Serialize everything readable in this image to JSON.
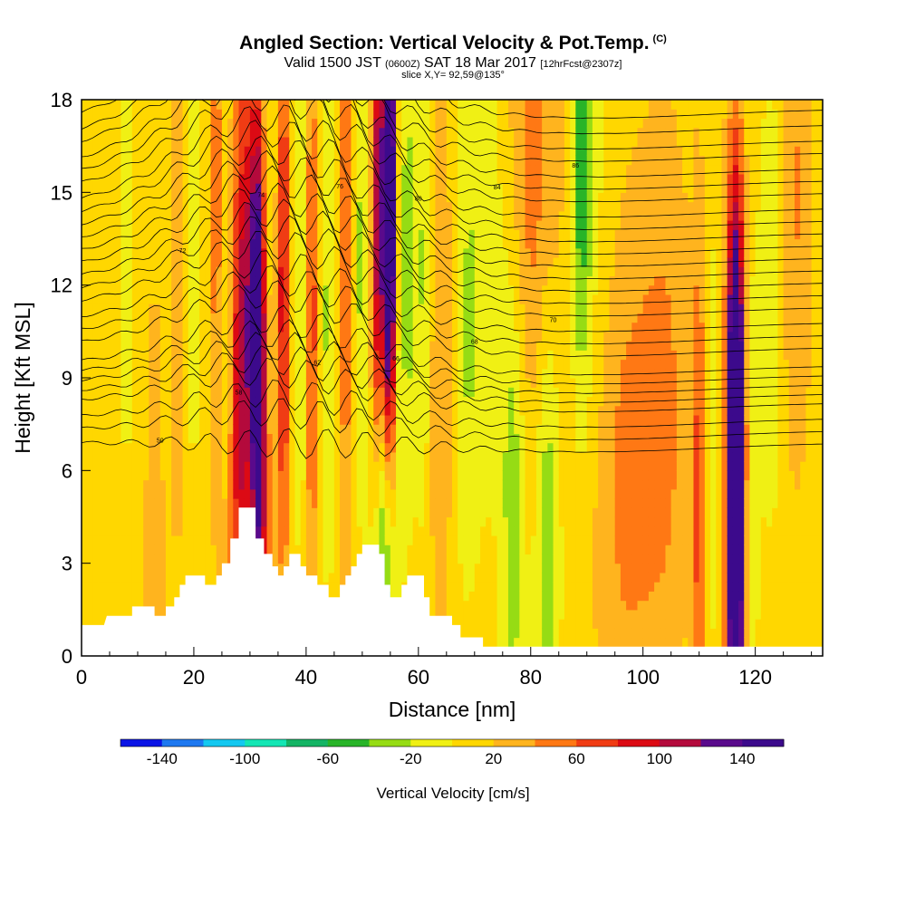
{
  "title": {
    "main": "Angled Section: Vertical Velocity & Pot.Temp.",
    "main_suffix": "(C)",
    "valid_prefix": "Valid 1500 JST",
    "valid_utc": "(0600Z)",
    "valid_date": "SAT 18 Mar 2017",
    "valid_fcst": "[12hrFcst@2307z]",
    "slice": "slice X,Y= 92,59@135°"
  },
  "chart_data": {
    "type": "heatmap",
    "xlabel": "Distance [nm]",
    "ylabel": "Height [Kft MSL]",
    "xlim": [
      0,
      132
    ],
    "ylim": [
      0,
      18
    ],
    "x_ticks": [
      0,
      20,
      40,
      60,
      80,
      100,
      120
    ],
    "y_ticks": [
      0,
      3,
      6,
      9,
      12,
      15,
      18
    ],
    "colorbar": {
      "label": "Vertical Velocity [cm/s]",
      "tick_labels": [
        -140,
        -100,
        -60,
        -20,
        20,
        60,
        100,
        140
      ],
      "levels": [
        -160,
        -140,
        -120,
        -100,
        -80,
        -60,
        -40,
        -20,
        0,
        20,
        40,
        60,
        80,
        100,
        120,
        140,
        160
      ],
      "colors": [
        "#0a14e6",
        "#1e78f0",
        "#14c8f0",
        "#14e6b4",
        "#14b464",
        "#28b428",
        "#96dc14",
        "#f0f014",
        "#ffd700",
        "#ffb41e",
        "#ff7814",
        "#f03c14",
        "#dc0a14",
        "#b40a3c",
        "#5a0a8c",
        "#3c0a8c"
      ]
    },
    "terrain_kft": [
      [
        0,
        1.0
      ],
      [
        4,
        1.0
      ],
      [
        4.5,
        1.3
      ],
      [
        9,
        1.3
      ],
      [
        9,
        1.6
      ],
      [
        13,
        1.6
      ],
      [
        13,
        1.3
      ],
      [
        15,
        1.3
      ],
      [
        15,
        1.6
      ],
      [
        16.5,
        1.6
      ],
      [
        16.5,
        1.9
      ],
      [
        17.5,
        1.9
      ],
      [
        17.5,
        2.3
      ],
      [
        18.5,
        2.3
      ],
      [
        18.5,
        2.6
      ],
      [
        22,
        2.6
      ],
      [
        22,
        2.3
      ],
      [
        24,
        2.3
      ],
      [
        24,
        2.6
      ],
      [
        25,
        2.6
      ],
      [
        25,
        3.0
      ],
      [
        26.5,
        3.0
      ],
      [
        26.5,
        3.8
      ],
      [
        28,
        3.8
      ],
      [
        28,
        4.8
      ],
      [
        31,
        4.8
      ],
      [
        31,
        3.8
      ],
      [
        32.5,
        3.8
      ],
      [
        32.5,
        3.3
      ],
      [
        34,
        3.3
      ],
      [
        34,
        2.9
      ],
      [
        35,
        2.9
      ],
      [
        35,
        2.6
      ],
      [
        36,
        2.6
      ],
      [
        36,
        2.9
      ],
      [
        37,
        2.9
      ],
      [
        37,
        3.3
      ],
      [
        39,
        3.3
      ],
      [
        39,
        2.9
      ],
      [
        40,
        2.9
      ],
      [
        40,
        2.6
      ],
      [
        42,
        2.6
      ],
      [
        42,
        2.3
      ],
      [
        44,
        2.3
      ],
      [
        44,
        1.9
      ],
      [
        46,
        1.9
      ],
      [
        46,
        2.3
      ],
      [
        47,
        2.3
      ],
      [
        47,
        2.6
      ],
      [
        48,
        2.6
      ],
      [
        48,
        2.9
      ],
      [
        49,
        2.9
      ],
      [
        49,
        3.3
      ],
      [
        50,
        3.3
      ],
      [
        50,
        3.6
      ],
      [
        53,
        3.6
      ],
      [
        53,
        3.3
      ],
      [
        54,
        3.3
      ],
      [
        54,
        2.3
      ],
      [
        55,
        2.3
      ],
      [
        55,
        1.9
      ],
      [
        57,
        1.9
      ],
      [
        57,
        2.3
      ],
      [
        58,
        2.3
      ],
      [
        58,
        2.6
      ],
      [
        61,
        2.6
      ],
      [
        61,
        1.9
      ],
      [
        62,
        1.9
      ],
      [
        62,
        1.3
      ],
      [
        66,
        1.3
      ],
      [
        66,
        1.0
      ],
      [
        67.5,
        1.0
      ],
      [
        67.5,
        0.6
      ],
      [
        71.5,
        0.6
      ],
      [
        71.5,
        0.3
      ],
      [
        132,
        0.3
      ]
    ],
    "theta_isolines_kft": [
      [
        0.0,
        6.9
      ],
      [
        0.6,
        7.3
      ],
      [
        0.8,
        7.7
      ],
      [
        1.0,
        8.2
      ],
      [
        1.1,
        8.5
      ],
      [
        1.25,
        8.8
      ],
      [
        1.35,
        9.1
      ],
      [
        1.5,
        9.4
      ],
      [
        1.7,
        10.0
      ],
      [
        1.8,
        10.4
      ],
      [
        1.9,
        10.8
      ],
      [
        2.05,
        11.3
      ],
      [
        2.15,
        11.7
      ],
      [
        2.25,
        12.1
      ],
      [
        2.35,
        12.5
      ],
      [
        2.5,
        12.9
      ],
      [
        2.6,
        13.3
      ],
      [
        2.7,
        13.7
      ],
      [
        2.85,
        14.1
      ],
      [
        2.95,
        14.5
      ],
      [
        3.1,
        15.0
      ],
      [
        3.25,
        15.4
      ],
      [
        3.35,
        15.8
      ],
      [
        3.5,
        16.3
      ],
      [
        3.6,
        16.7
      ],
      [
        3.75,
        17.2
      ],
      [
        3.9,
        17.7
      ]
    ],
    "contour_labels": [
      "50",
      "58",
      "62",
      "66",
      "68",
      "70",
      "72",
      "74",
      "76",
      "80",
      "84",
      "86",
      "88"
    ]
  }
}
